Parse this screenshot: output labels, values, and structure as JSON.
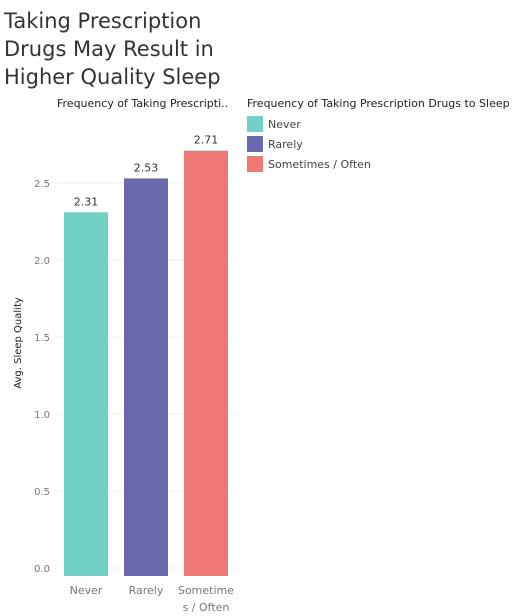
{
  "title": "Taking Prescription Drugs May Result in Higher Quality Sleep",
  "column_header": "Frequency of Taking Prescripti..",
  "legend": {
    "title": "Frequency of Taking Prescription Drugs to Sleep",
    "items": [
      {
        "label": "Never",
        "color": "#71d1c5"
      },
      {
        "label": "Rarely",
        "color": "#6a68ad"
      },
      {
        "label": "Sometimes / Often",
        "color": "#ef7874"
      }
    ]
  },
  "chart_data": {
    "type": "bar",
    "categories": [
      "Never",
      "Rarely",
      "Sometimes / Often"
    ],
    "category_tick_labels": [
      [
        "Never"
      ],
      [
        "Rarely"
      ],
      [
        "Sometime",
        "s / Often"
      ]
    ],
    "values": [
      2.31,
      2.53,
      2.71
    ],
    "value_labels": [
      "2.31",
      "2.53",
      "2.71"
    ],
    "colors": [
      "#71d1c5",
      "#6a68ad",
      "#ef7874"
    ],
    "ylabel": "Avg. Sleep Quality",
    "yticks": [
      "0.0",
      "0.5",
      "1.0",
      "1.5",
      "2.0",
      "2.5"
    ],
    "ylim": [
      0,
      2.85
    ],
    "grid": true,
    "legend_position": "right"
  }
}
